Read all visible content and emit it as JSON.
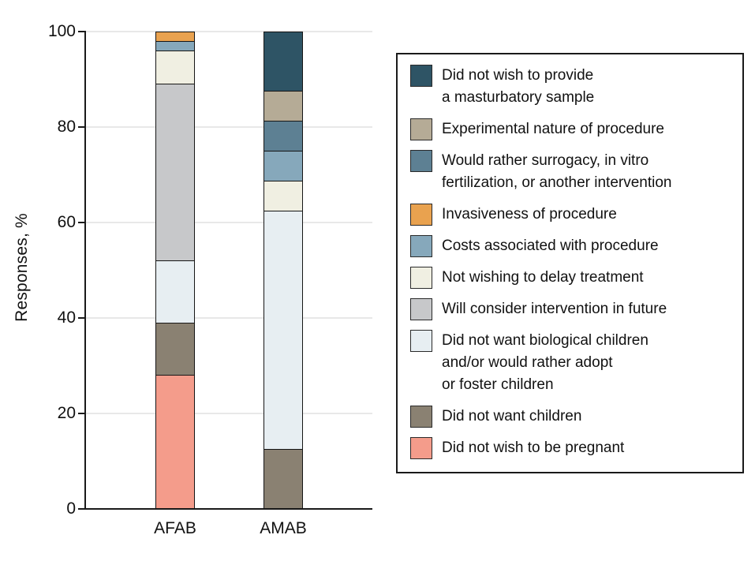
{
  "chart_data": {
    "type": "bar",
    "subtype": "stacked-vertical",
    "title": "",
    "y_axis_title": "Responses, %",
    "ylim": [
      0,
      100
    ],
    "y_ticks": [
      0,
      20,
      40,
      60,
      80,
      100
    ],
    "grid": true,
    "legend_position": "right",
    "categories": [
      "AFAB",
      "AMAB"
    ],
    "series": [
      {
        "name": "Did not wish to be pregnant",
        "color": "#F49C8B",
        "values": [
          28,
          0
        ]
      },
      {
        "name": "Did not want children",
        "color": "#8A8172",
        "values": [
          11,
          12.5
        ]
      },
      {
        "name": "Did not want biological children and/or would rather adopt or foster children",
        "color": "#E7EEF2",
        "values": [
          13,
          50
        ]
      },
      {
        "name": "Will consider intervention in future",
        "color": "#C7C8CA",
        "values": [
          37,
          0
        ]
      },
      {
        "name": "Not wishing to delay treatment",
        "color": "#F0EFE2",
        "values": [
          7,
          6.25
        ]
      },
      {
        "name": "Costs associated with procedure",
        "color": "#86A8BB",
        "values": [
          2,
          6.25
        ]
      },
      {
        "name": "Invasiveness of procedure",
        "color": "#E9A24F",
        "values": [
          2,
          0
        ]
      },
      {
        "name": "Would rather surrogacy, in vitro fertilization, or another intervention",
        "color": "#5D8093",
        "values": [
          0,
          6.25
        ]
      },
      {
        "name": "Experimental nature of procedure",
        "color": "#B5AB96",
        "values": [
          0,
          6.25
        ]
      },
      {
        "name": "Did not wish to provide a masturbatory sample",
        "color": "#2E5465",
        "values": [
          0,
          12.5
        ]
      }
    ],
    "legend_items": [
      {
        "label": "Did not wish to provide\na masturbatory sample",
        "color": "#2E5465"
      },
      {
        "label": "Experimental nature of procedure",
        "color": "#B5AB96"
      },
      {
        "label": "Would rather surrogacy, in vitro\nfertilization, or another intervention",
        "color": "#5D8093"
      },
      {
        "label": "Invasiveness of procedure",
        "color": "#E9A24F"
      },
      {
        "label": "Costs associated with procedure",
        "color": "#86A8BB"
      },
      {
        "label": "Not wishing to delay treatment",
        "color": "#F0EFE2"
      },
      {
        "label": "Will consider intervention in future",
        "color": "#C7C8CA"
      },
      {
        "label": "Did not want biological children\nand/or would rather adopt\nor foster children",
        "color": "#E7EEF2"
      },
      {
        "label": "Did not want children",
        "color": "#8A8172"
      },
      {
        "label": "Did not wish to be pregnant",
        "color": "#F49C8B"
      }
    ],
    "colors": {
      "axis": "#1a1a1a",
      "gridline": "#e8e8e8",
      "segment_border": "#161616",
      "background": "#ffffff"
    }
  }
}
